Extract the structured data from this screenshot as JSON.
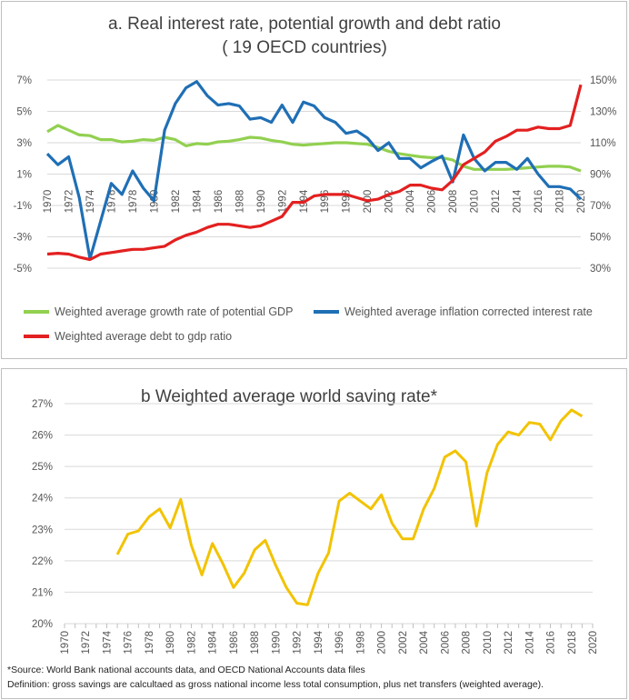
{
  "chart_data": [
    {
      "type": "line",
      "title": [
        "a.  Real interest rate, potential growth and debt ratio",
        "( 19 OECD countries)"
      ],
      "xlabel": "",
      "ylabel": "",
      "x": [
        1970,
        1971,
        1972,
        1973,
        1974,
        1975,
        1976,
        1977,
        1978,
        1979,
        1980,
        1981,
        1982,
        1983,
        1984,
        1985,
        1986,
        1987,
        1988,
        1989,
        1990,
        1991,
        1992,
        1993,
        1994,
        1995,
        1996,
        1997,
        1998,
        1999,
        2000,
        2001,
        2002,
        2003,
        2004,
        2005,
        2006,
        2007,
        2008,
        2009,
        2010,
        2011,
        2012,
        2013,
        2014,
        2015,
        2016,
        2017,
        2018,
        2019,
        2020
      ],
      "x_tick_labels": [
        "1970",
        "1972",
        "1974",
        "1976",
        "1978",
        "1980",
        "1982",
        "1984",
        "1986",
        "1988",
        "1990",
        "1992",
        "1994",
        "1996",
        "1998",
        "2000",
        "2002",
        "2004",
        "2006",
        "2008",
        "2010",
        "2012",
        "2014",
        "2016",
        "2018",
        "2020"
      ],
      "y_left": {
        "ticks": [
          "7%",
          "5%",
          "3%",
          "1%",
          "-1%",
          "-3%",
          "-5%"
        ],
        "range": [
          -5,
          7
        ]
      },
      "y_right": {
        "ticks": [
          "150%",
          "130%",
          "110%",
          "90%",
          "70%",
          "50%",
          "30%"
        ],
        "range": [
          30,
          150
        ]
      },
      "series": [
        {
          "name": "Weighted average growth rate of potential GDP",
          "axis": "left",
          "color": "#92d050",
          "values": [
            3.7,
            4.1,
            3.8,
            3.5,
            3.45,
            3.2,
            3.2,
            3.05,
            3.1,
            3.2,
            3.15,
            3.35,
            3.2,
            2.8,
            2.95,
            2.9,
            3.05,
            3.1,
            3.2,
            3.35,
            3.3,
            3.15,
            3.05,
            2.9,
            2.85,
            2.9,
            2.95,
            3.0,
            3.0,
            2.95,
            2.9,
            2.7,
            2.45,
            2.3,
            2.2,
            2.1,
            2.05,
            2.05,
            1.9,
            1.5,
            1.3,
            1.3,
            1.3,
            1.3,
            1.35,
            1.4,
            1.45,
            1.5,
            1.5,
            1.45,
            1.2
          ]
        },
        {
          "name": "Weighted average inflation corrected interest rate",
          "axis": "left",
          "color": "#1f6fb5",
          "values": [
            2.3,
            1.6,
            2.1,
            -0.5,
            -4.4,
            -2.0,
            0.4,
            -0.3,
            1.2,
            0.1,
            -0.7,
            3.8,
            5.5,
            6.5,
            6.9,
            6.0,
            5.4,
            5.5,
            5.35,
            4.5,
            4.6,
            4.3,
            5.4,
            4.3,
            5.6,
            5.35,
            4.6,
            4.3,
            3.6,
            3.75,
            3.3,
            2.5,
            3.0,
            2.0,
            2.0,
            1.4,
            1.8,
            2.15,
            0.5,
            3.5,
            2.0,
            1.2,
            1.75,
            1.75,
            1.3,
            2.0,
            1.0,
            0.2,
            0.2,
            0.05,
            -0.6
          ]
        },
        {
          "name": "Weighted average debt to gdp ratio",
          "axis": "right",
          "color": "#e32020",
          "values": [
            39,
            39.5,
            39,
            37,
            35.5,
            39,
            40,
            41,
            42,
            42,
            43,
            44,
            48,
            51,
            53,
            56,
            58,
            58,
            57,
            56,
            57,
            60,
            63,
            72,
            72,
            76,
            77,
            77,
            77,
            75,
            73,
            74,
            77,
            79,
            83,
            83,
            81,
            80,
            86,
            96,
            100,
            104,
            111,
            114,
            118,
            118,
            120,
            119,
            119,
            121,
            147
          ]
        }
      ]
    },
    {
      "type": "line",
      "title": "b   Weighted average world saving rate*",
      "xlabel": "",
      "ylabel": "",
      "x": [
        1975,
        1976,
        1977,
        1978,
        1979,
        1980,
        1981,
        1982,
        1983,
        1984,
        1985,
        1986,
        1987,
        1988,
        1989,
        1990,
        1991,
        1992,
        1993,
        1994,
        1995,
        1996,
        1997,
        1998,
        1999,
        2000,
        2001,
        2002,
        2003,
        2004,
        2005,
        2006,
        2007,
        2008,
        2009,
        2010,
        2011,
        2012,
        2013,
        2014,
        2015,
        2016,
        2017,
        2018,
        2019
      ],
      "x_tick_labels": [
        "1970",
        "1972",
        "1974",
        "1976",
        "1978",
        "1980",
        "1982",
        "1984",
        "1986",
        "1988",
        "1990",
        "1992",
        "1994",
        "1996",
        "1998",
        "2000",
        "2002",
        "2004",
        "2006",
        "2008",
        "2010",
        "2012",
        "2014",
        "2016",
        "2018",
        "2020"
      ],
      "x_range": [
        1970,
        2020
      ],
      "y_ticks": [
        "27%",
        "26%",
        "25%",
        "24%",
        "23%",
        "22%",
        "21%",
        "20%"
      ],
      "ylim": [
        20,
        27
      ],
      "series": [
        {
          "name": "Weighted average world saving rate",
          "color": "#f2c300",
          "values": [
            22.2,
            22.85,
            22.95,
            23.4,
            23.65,
            23.05,
            23.95,
            22.5,
            21.55,
            22.55,
            21.9,
            21.15,
            21.6,
            22.35,
            22.65,
            21.85,
            21.15,
            20.65,
            20.6,
            21.6,
            22.25,
            23.9,
            24.15,
            23.9,
            23.65,
            24.1,
            23.2,
            22.7,
            22.7,
            23.65,
            24.3,
            25.3,
            25.5,
            25.15,
            23.1,
            24.8,
            25.7,
            26.1,
            26.0,
            26.4,
            26.35,
            25.85,
            26.45,
            26.8,
            26.6
          ]
        }
      ]
    }
  ],
  "source_note": "*Source: World Bank national accounts data, and OECD National Accounts data files",
  "definition_note": "Definition: gross savings are calcultaed as gross national income less total consumption, plus net transfers (weighted average)."
}
